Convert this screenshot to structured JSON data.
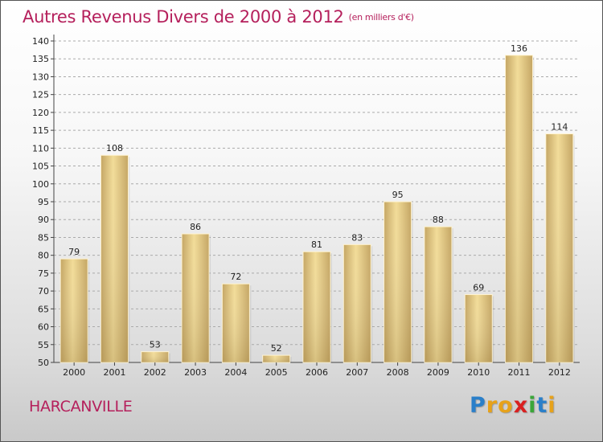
{
  "title": "Autres Revenus Divers de 2000 à 2012",
  "unit": "(en milliers d'€)",
  "commune": "HARCANVILLE",
  "logo": {
    "letters": [
      "P",
      "r",
      "o",
      "x",
      "i",
      "t",
      "i"
    ],
    "colors": [
      "#2a7fc9",
      "#e7a21a",
      "#e7a21a",
      "#d92020",
      "#3aa639",
      "#2a7fc9",
      "#e7a21a"
    ]
  },
  "colors": {
    "title": "#b5205c",
    "bar_light": "#f2dc98",
    "bar_dark": "#c4a563",
    "grid": "#aaaaaa"
  },
  "chart_data": {
    "type": "bar",
    "title": "Autres Revenus Divers de 2000 à 2012",
    "subtitle": "(en milliers d'€)",
    "categories": [
      "2000",
      "2001",
      "2002",
      "2003",
      "2004",
      "2005",
      "2006",
      "2007",
      "2008",
      "2009",
      "2010",
      "2011",
      "2012"
    ],
    "values": [
      79,
      108,
      53,
      86,
      72,
      52,
      81,
      83,
      95,
      88,
      69,
      136,
      114
    ],
    "ylim": [
      50,
      140
    ],
    "yticks": [
      50,
      55,
      60,
      65,
      70,
      75,
      80,
      85,
      90,
      95,
      100,
      105,
      110,
      115,
      120,
      125,
      130,
      135,
      140
    ],
    "grid": "horizontal dashed",
    "data_labels": true
  }
}
